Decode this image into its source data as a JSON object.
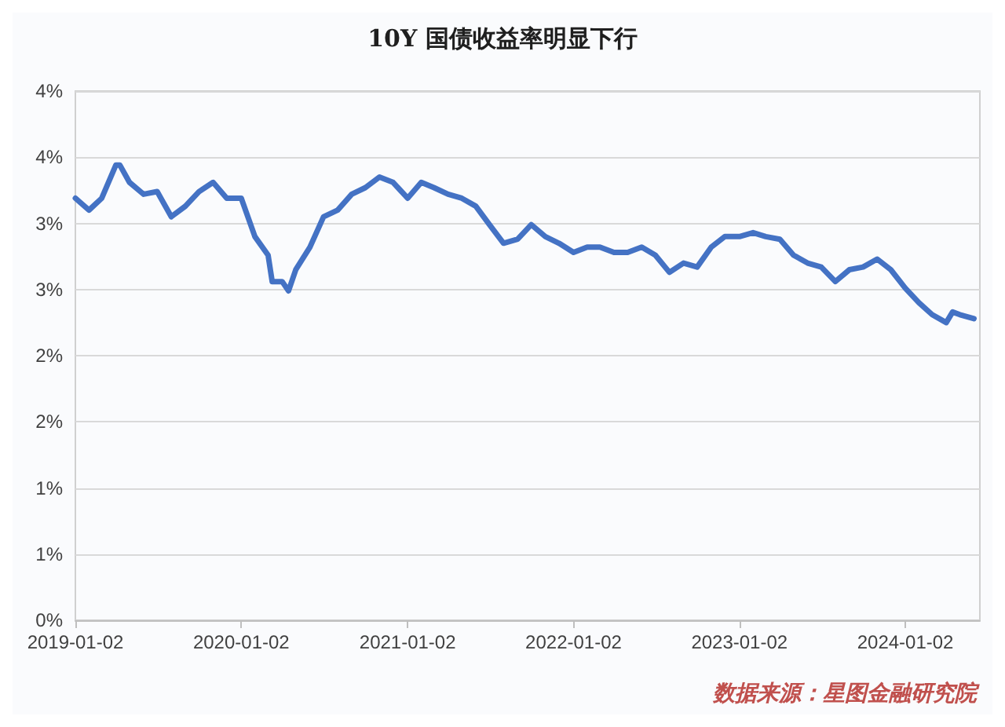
{
  "chart_data": {
    "type": "line",
    "title": "10Y 国债收益率明显下行",
    "x": [
      "2019-01-02",
      "2019-02-01",
      "2019-03-01",
      "2019-04-01",
      "2019-04-10",
      "2019-05-01",
      "2019-06-01",
      "2019-07-01",
      "2019-08-01",
      "2019-09-01",
      "2019-10-01",
      "2019-11-01",
      "2019-12-01",
      "2020-01-02",
      "2020-02-01",
      "2020-03-01",
      "2020-03-10",
      "2020-04-01",
      "2020-04-15",
      "2020-05-01",
      "2020-06-01",
      "2020-07-01",
      "2020-08-01",
      "2020-09-01",
      "2020-10-01",
      "2020-11-01",
      "2020-12-01",
      "2021-01-02",
      "2021-02-01",
      "2021-03-01",
      "2021-04-01",
      "2021-05-01",
      "2021-06-01",
      "2021-07-01",
      "2021-08-01",
      "2021-09-01",
      "2021-10-01",
      "2021-11-01",
      "2021-12-01",
      "2022-01-02",
      "2022-02-01",
      "2022-03-01",
      "2022-04-01",
      "2022-05-01",
      "2022-06-01",
      "2022-07-01",
      "2022-08-01",
      "2022-09-01",
      "2022-10-01",
      "2022-11-01",
      "2022-12-01",
      "2023-01-02",
      "2023-02-01",
      "2023-03-01",
      "2023-04-01",
      "2023-05-01",
      "2023-06-01",
      "2023-07-01",
      "2023-08-01",
      "2023-09-01",
      "2023-10-01",
      "2023-11-01",
      "2023-12-01",
      "2024-01-02",
      "2024-02-01",
      "2024-03-01",
      "2024-04-01",
      "2024-04-15",
      "2024-05-01",
      "2024-06-01"
    ],
    "series": [
      {
        "color": "#4472c4",
        "values": [
          3.19,
          3.1,
          3.19,
          3.44,
          3.44,
          3.31,
          3.22,
          3.24,
          3.05,
          3.13,
          3.24,
          3.31,
          3.19,
          3.19,
          2.9,
          2.76,
          2.56,
          2.56,
          2.49,
          2.65,
          2.82,
          3.05,
          3.1,
          3.22,
          3.27,
          3.35,
          3.31,
          3.19,
          3.31,
          3.27,
          3.22,
          3.19,
          3.13,
          2.99,
          2.85,
          2.88,
          2.99,
          2.9,
          2.85,
          2.78,
          2.82,
          2.82,
          2.78,
          2.78,
          2.82,
          2.76,
          2.63,
          2.7,
          2.67,
          2.82,
          2.9,
          2.9,
          2.93,
          2.9,
          2.88,
          2.76,
          2.7,
          2.67,
          2.56,
          2.65,
          2.67,
          2.73,
          2.65,
          2.51,
          2.4,
          2.31,
          2.25,
          2.33,
          2.31,
          2.28
        ]
      }
    ],
    "xlim": [
      "2019-01-02",
      "2024-06-14"
    ],
    "xticks": [
      "2019-01-02",
      "2020-01-02",
      "2021-01-02",
      "2022-01-02",
      "2023-01-02",
      "2024-01-02"
    ],
    "ylim": [
      0,
      4
    ],
    "yticks": [
      {
        "value": 0,
        "label": "0%"
      },
      {
        "value": 0.5,
        "label": "1%"
      },
      {
        "value": 1,
        "label": "1%"
      },
      {
        "value": 1.5,
        "label": "2%"
      },
      {
        "value": 2,
        "label": "2%"
      },
      {
        "value": 2.5,
        "label": "3%"
      },
      {
        "value": 3,
        "label": "3%"
      },
      {
        "value": 3.5,
        "label": "4%"
      },
      {
        "value": 4,
        "label": "4%"
      }
    ],
    "grid": "y",
    "marker": "none",
    "line_style": "solid",
    "annotations": [
      "数据来源：星图金融研究院"
    ]
  }
}
